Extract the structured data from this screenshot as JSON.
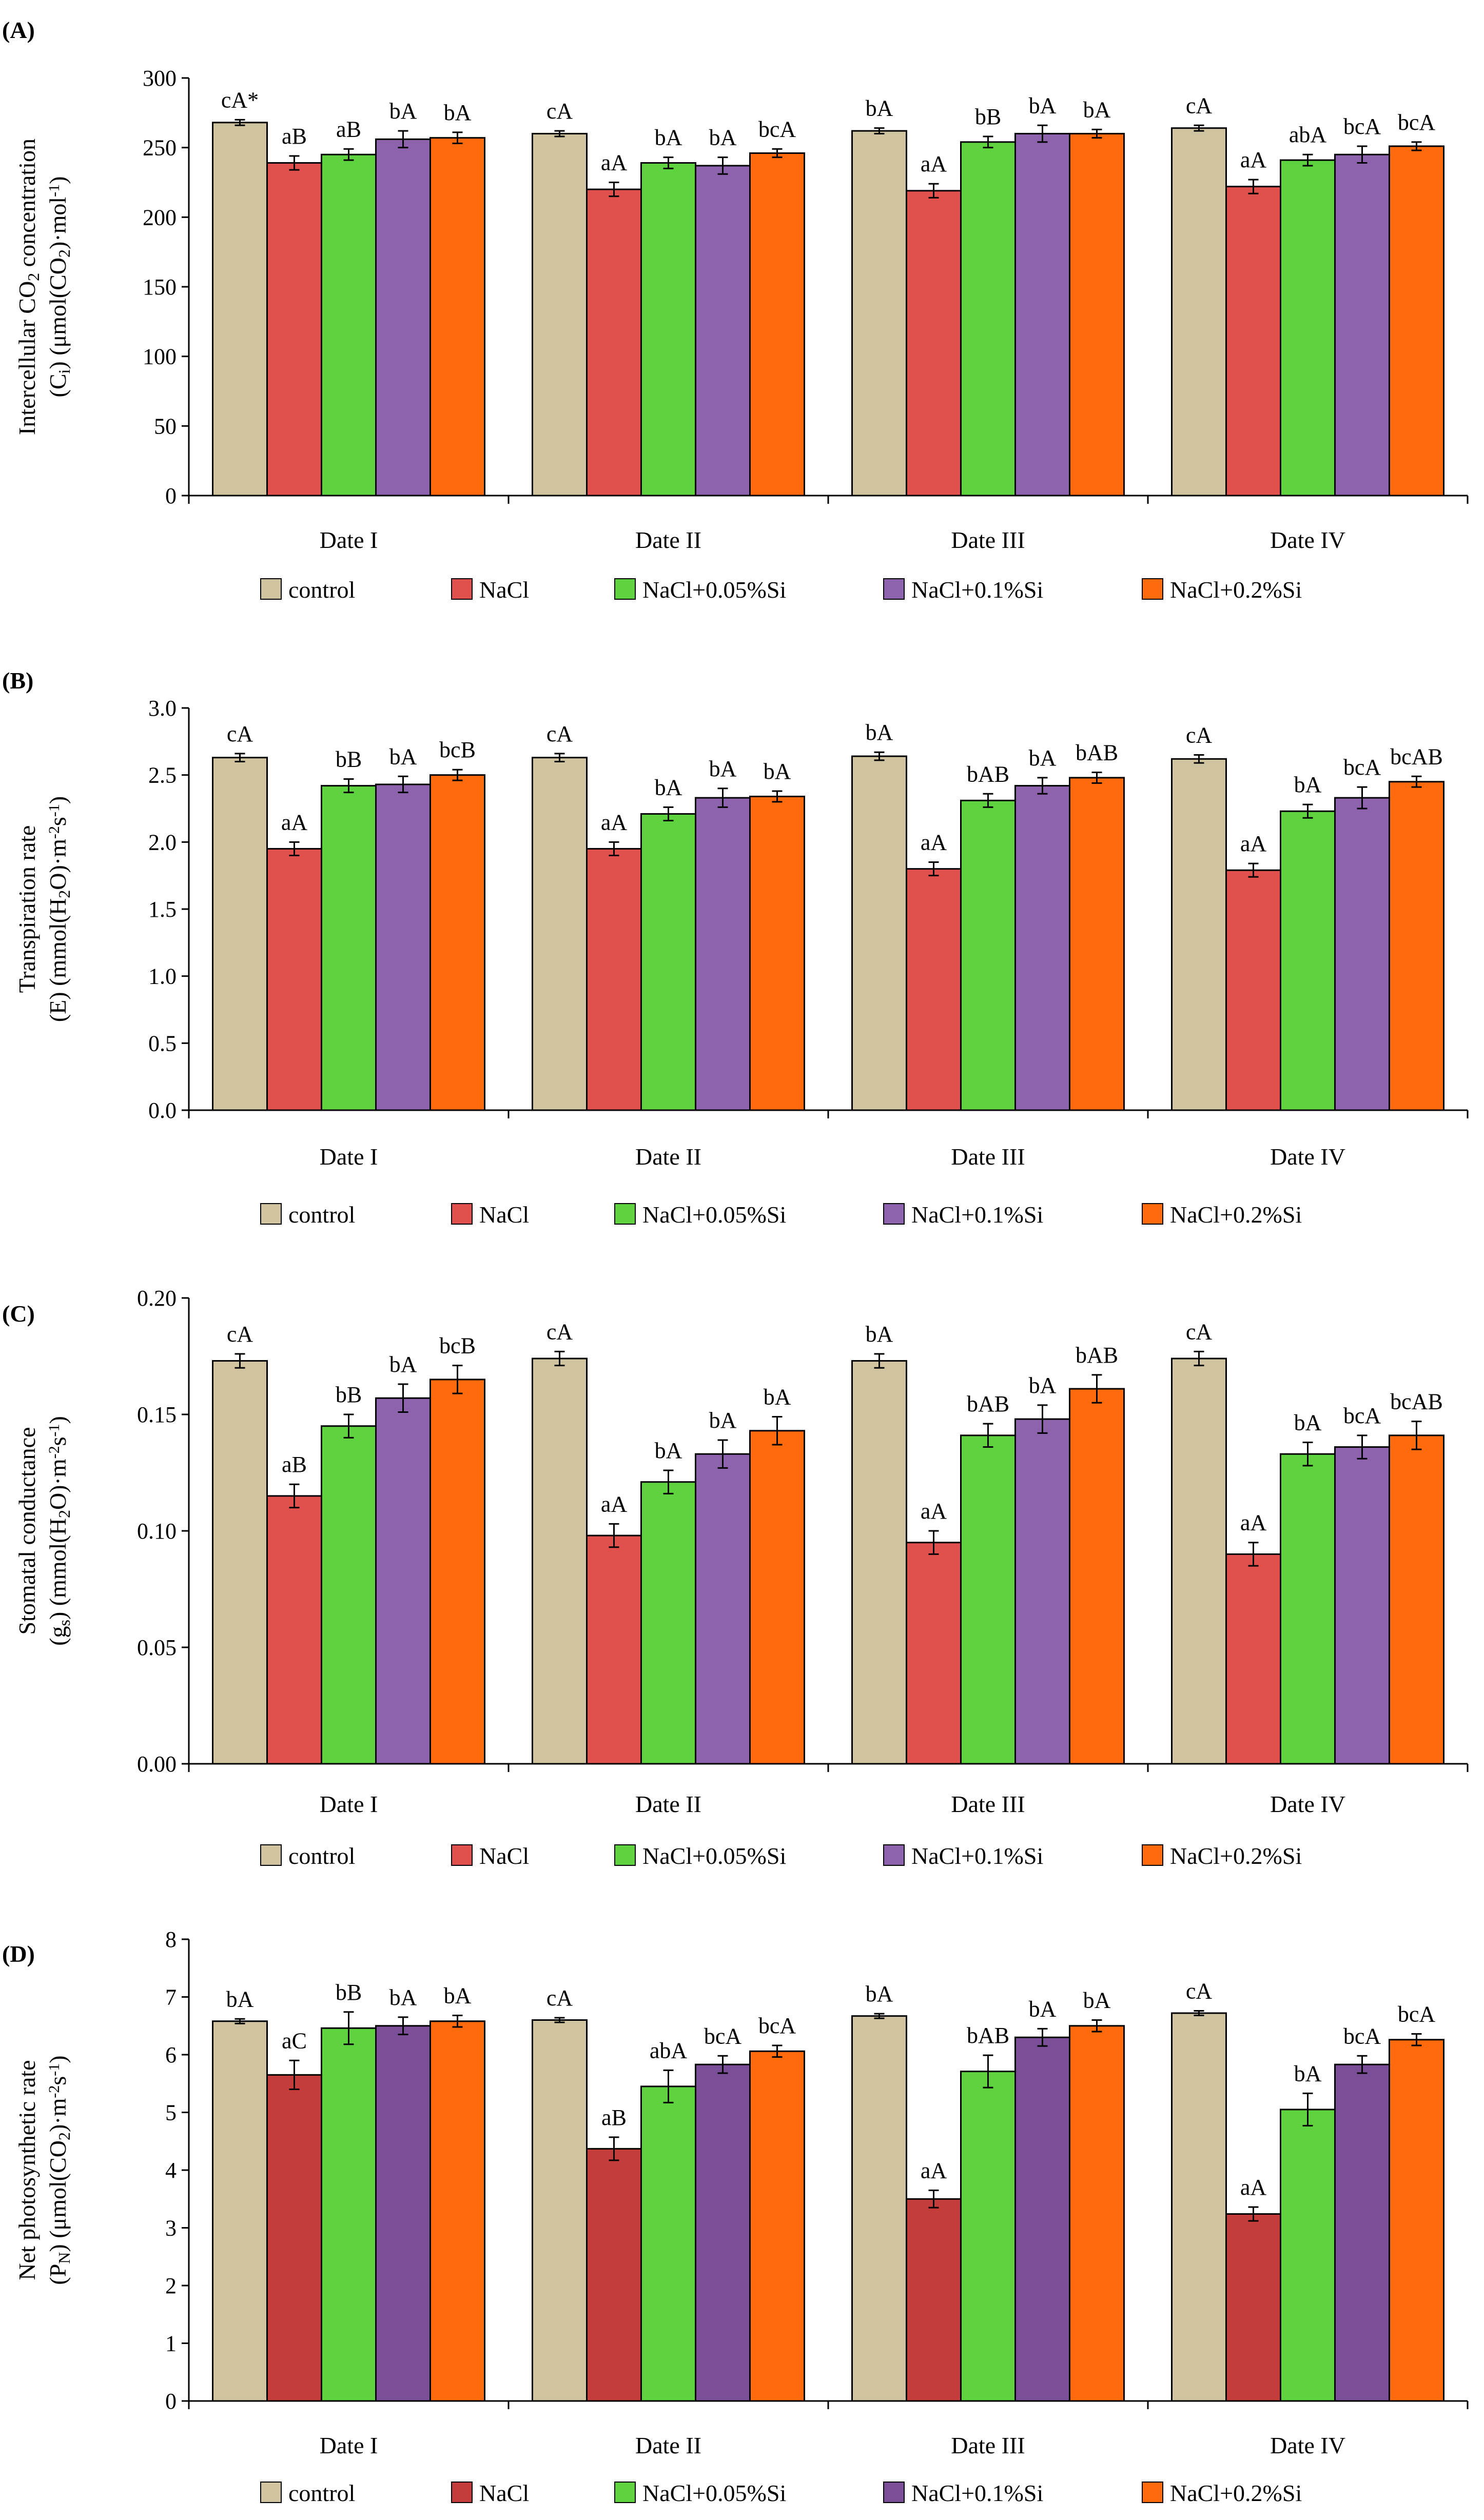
{
  "colors": {
    "control": "#cfc3a0",
    "nacl_abc": "#e0504c",
    "nacl_d": "#c43d3a",
    "si005": "#5fd23f",
    "si01_abc": "#8e63ae",
    "si01_d": "#7b4f98",
    "si02": "#ff6a0c"
  },
  "legend": [
    "control",
    "NaCl",
    "NaCl+0.05%Si",
    "NaCl+0.1%Si",
    "NaCl+0.2%Si"
  ],
  "chart_data": [
    {
      "panel": "(A)",
      "type": "bar",
      "ylabel_lines": [
        {
          "parts": [
            {
              "t": "Intercellular CO"
            },
            {
              "t": "2",
              "sub": true
            },
            {
              "t": " concentration"
            }
          ]
        },
        {
          "parts": [
            {
              "t": "(C"
            },
            {
              "t": "i",
              "sub": true
            },
            {
              "t": ") (μmol(CO"
            },
            {
              "t": "2",
              "sub": true
            },
            {
              "t": ")·mol"
            },
            {
              "t": "-1",
              "sup": true
            },
            {
              "t": ")"
            }
          ]
        }
      ],
      "ylim": [
        0,
        300
      ],
      "yticks": [
        0,
        50,
        100,
        150,
        200,
        250,
        300
      ],
      "tick_labels": [
        "0",
        "50",
        "100",
        "150",
        "200",
        "250",
        "300"
      ],
      "categories": [
        "Date I",
        "Date II",
        "Date III",
        "Date IV"
      ],
      "series": [
        {
          "name": "control",
          "values": [
            268,
            260,
            262,
            264
          ],
          "errors": [
            2,
            2,
            2,
            2
          ],
          "labels": [
            "cA*",
            "cA",
            "bA",
            "cA"
          ]
        },
        {
          "name": "NaCl",
          "values": [
            239,
            220,
            219,
            222
          ],
          "errors": [
            5,
            5,
            5,
            5
          ],
          "labels": [
            "aB",
            "aA",
            "aA",
            "aA"
          ]
        },
        {
          "name": "NaCl+0.05%Si",
          "values": [
            245,
            239,
            254,
            241
          ],
          "errors": [
            4,
            4,
            4,
            4
          ],
          "labels": [
            "aB",
            "bA",
            "bB",
            "abA"
          ]
        },
        {
          "name": "NaCl+0.1%Si",
          "values": [
            256,
            237,
            260,
            245
          ],
          "errors": [
            6,
            6,
            6,
            6
          ],
          "labels": [
            "bA",
            "bA",
            "bA",
            "bcA"
          ]
        },
        {
          "name": "NaCl+0.2%Si",
          "values": [
            257,
            246,
            260,
            251
          ],
          "errors": [
            4,
            3,
            3,
            3
          ],
          "labels": [
            "bA",
            "bcA",
            "bA",
            "bcA"
          ]
        }
      ]
    },
    {
      "panel": "(B)",
      "type": "bar",
      "ylabel_lines": [
        {
          "parts": [
            {
              "t": "Transpiration rate"
            }
          ]
        },
        {
          "parts": [
            {
              "t": "(E) (mmol(H"
            },
            {
              "t": "2",
              "sub": true
            },
            {
              "t": "O)·m"
            },
            {
              "t": "-2",
              "sup": true
            },
            {
              "t": "s"
            },
            {
              "t": "-1",
              "sup": true
            },
            {
              "t": ")"
            }
          ]
        }
      ],
      "ylim": [
        0,
        3.0
      ],
      "yticks": [
        0,
        0.5,
        1.0,
        1.5,
        2.0,
        2.5,
        3.0
      ],
      "tick_labels": [
        "0.0",
        "0.5",
        "1.0",
        "1.5",
        "2.0",
        "2.5",
        "3.0"
      ],
      "categories": [
        "Date I",
        "Date II",
        "Date III",
        "Date IV"
      ],
      "series": [
        {
          "name": "control",
          "values": [
            2.63,
            2.63,
            2.64,
            2.62
          ],
          "errors": [
            0.03,
            0.03,
            0.03,
            0.03
          ],
          "labels": [
            "cA",
            "cA",
            "bA",
            "cA"
          ]
        },
        {
          "name": "NaCl",
          "values": [
            1.95,
            1.95,
            1.8,
            1.79
          ],
          "errors": [
            0.05,
            0.05,
            0.05,
            0.05
          ],
          "labels": [
            "aA",
            "aA",
            "aA",
            "aA"
          ]
        },
        {
          "name": "NaCl+0.05%Si",
          "values": [
            2.42,
            2.21,
            2.31,
            2.23
          ],
          "errors": [
            0.05,
            0.05,
            0.05,
            0.05
          ],
          "labels": [
            "bB",
            "bA",
            "bAB",
            "bA"
          ]
        },
        {
          "name": "NaCl+0.1%Si",
          "values": [
            2.43,
            2.33,
            2.42,
            2.33
          ],
          "errors": [
            0.06,
            0.07,
            0.06,
            0.08
          ],
          "labels": [
            "bA",
            "bA",
            "bA",
            "bcA"
          ]
        },
        {
          "name": "NaCl+0.2%Si",
          "values": [
            2.5,
            2.34,
            2.48,
            2.45
          ],
          "errors": [
            0.04,
            0.04,
            0.04,
            0.04
          ],
          "labels": [
            "bcB",
            "bA",
            "bAB",
            "bcAB"
          ]
        }
      ]
    },
    {
      "panel": "(C)",
      "type": "bar",
      "ylabel_lines": [
        {
          "parts": [
            {
              "t": "Stomatal conductance"
            }
          ]
        },
        {
          "parts": [
            {
              "t": "(g"
            },
            {
              "t": "s",
              "sub": true
            },
            {
              "t": ") (mmol(H"
            },
            {
              "t": "2",
              "sub": true
            },
            {
              "t": "O)·m"
            },
            {
              "t": "-2",
              "sup": true
            },
            {
              "t": "s"
            },
            {
              "t": "-1",
              "sup": true
            },
            {
              "t": ")"
            }
          ]
        }
      ],
      "ylim": [
        0,
        0.2
      ],
      "yticks": [
        0,
        0.05,
        0.1,
        0.15,
        0.2
      ],
      "tick_labels": [
        "0.00",
        "0.05",
        "0.10",
        "0.15",
        "0.20"
      ],
      "categories": [
        "Date I",
        "Date II",
        "Date III",
        "Date IV"
      ],
      "series": [
        {
          "name": "control",
          "values": [
            0.173,
            0.174,
            0.173,
            0.174
          ],
          "errors": [
            0.003,
            0.003,
            0.003,
            0.003
          ],
          "labels": [
            "cA",
            "cA",
            "bA",
            "cA"
          ]
        },
        {
          "name": "NaCl",
          "values": [
            0.115,
            0.098,
            0.095,
            0.09
          ],
          "errors": [
            0.005,
            0.005,
            0.005,
            0.005
          ],
          "labels": [
            "aB",
            "aA",
            "aA",
            "aA"
          ]
        },
        {
          "name": "NaCl+0.05%Si",
          "values": [
            0.145,
            0.121,
            0.141,
            0.133
          ],
          "errors": [
            0.005,
            0.005,
            0.005,
            0.005
          ],
          "labels": [
            "bB",
            "bA",
            "bAB",
            "bA"
          ]
        },
        {
          "name": "NaCl+0.1%Si",
          "values": [
            0.157,
            0.133,
            0.148,
            0.136
          ],
          "errors": [
            0.006,
            0.006,
            0.006,
            0.005
          ],
          "labels": [
            "bA",
            "bA",
            "bA",
            "bcA"
          ]
        },
        {
          "name": "NaCl+0.2%Si",
          "values": [
            0.165,
            0.143,
            0.161,
            0.141
          ],
          "errors": [
            0.006,
            0.006,
            0.006,
            0.006
          ],
          "labels": [
            "bcB",
            "bA",
            "bAB",
            "bcAB"
          ]
        }
      ]
    },
    {
      "panel": "(D)",
      "type": "bar",
      "ylabel_lines": [
        {
          "parts": [
            {
              "t": "Net photosynthetic rate"
            }
          ]
        },
        {
          "parts": [
            {
              "t": "(P"
            },
            {
              "t": "N",
              "sub": true
            },
            {
              "t": ") (μmol(CO"
            },
            {
              "t": "2",
              "sub": true
            },
            {
              "t": ")·m"
            },
            {
              "t": "-2",
              "sup": true
            },
            {
              "t": "s"
            },
            {
              "t": "-1",
              "sup": true
            },
            {
              "t": ")"
            }
          ]
        }
      ],
      "ylim": [
        0,
        8
      ],
      "yticks": [
        0,
        1,
        2,
        3,
        4,
        5,
        6,
        7,
        8
      ],
      "tick_labels": [
        "0",
        "1",
        "2",
        "3",
        "4",
        "5",
        "6",
        "7",
        "8"
      ],
      "categories": [
        "Date I",
        "Date II",
        "Date III",
        "Date IV"
      ],
      "series": [
        {
          "name": "control",
          "values": [
            6.58,
            6.6,
            6.67,
            6.72
          ],
          "errors": [
            0.04,
            0.04,
            0.04,
            0.04
          ],
          "labels": [
            "bA",
            "cA",
            "bA",
            "cA"
          ]
        },
        {
          "name": "NaCl",
          "values": [
            5.65,
            4.37,
            3.5,
            3.24
          ],
          "errors": [
            0.25,
            0.2,
            0.15,
            0.12
          ],
          "labels": [
            "aC",
            "aB",
            "aA",
            "aA"
          ]
        },
        {
          "name": "NaCl+0.05%Si",
          "values": [
            6.46,
            5.45,
            5.71,
            5.05
          ],
          "errors": [
            0.28,
            0.28,
            0.28,
            0.28
          ],
          "labels": [
            "bB",
            "abA",
            "bAB",
            "bA"
          ]
        },
        {
          "name": "NaCl+0.1%Si",
          "values": [
            6.5,
            5.83,
            6.3,
            5.83
          ],
          "errors": [
            0.15,
            0.15,
            0.15,
            0.15
          ],
          "labels": [
            "bA",
            "bcA",
            "bA",
            "bcA"
          ]
        },
        {
          "name": "NaCl+0.2%Si",
          "values": [
            6.58,
            6.06,
            6.5,
            6.26
          ],
          "errors": [
            0.1,
            0.1,
            0.1,
            0.1
          ],
          "labels": [
            "bA",
            "bcA",
            "bA",
            "bcA"
          ]
        }
      ]
    }
  ]
}
